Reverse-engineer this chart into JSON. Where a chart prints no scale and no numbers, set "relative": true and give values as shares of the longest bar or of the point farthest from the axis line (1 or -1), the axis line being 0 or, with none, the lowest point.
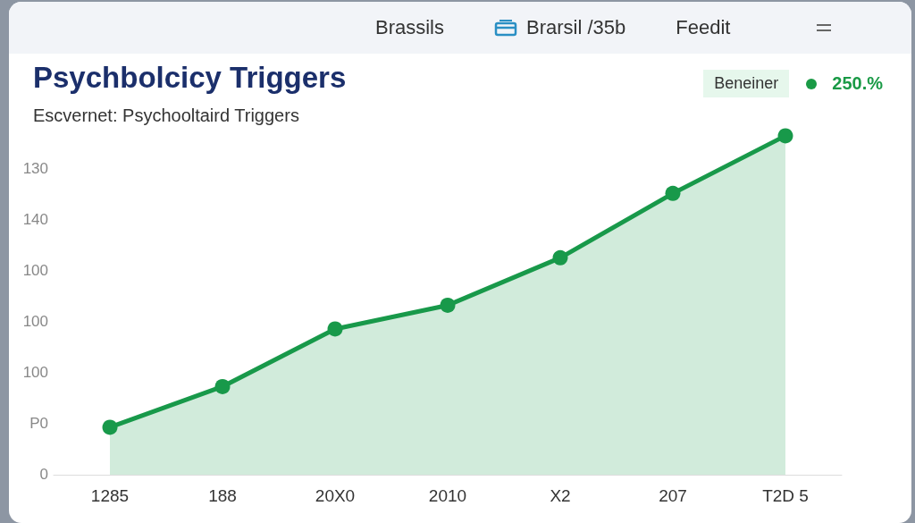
{
  "chart_data": {
    "type": "area",
    "title": "Psychbolcicy Triggers",
    "subtitle": "Escvernet: Psychooltaird Triggers",
    "categories": [
      "1285",
      "188",
      "20X0",
      "2010",
      "X2",
      "207",
      "T2D 5"
    ],
    "series": [
      {
        "color": "#18994a",
        "values": [
          0.14,
          0.26,
          0.43,
          0.5,
          0.64,
          0.83,
          1
        ]
      }
    ],
    "relative": true,
    "marker": "circle",
    "annotations": [
      "Brassils",
      "Brarsil /35b",
      "Feedit",
      "Beneiner",
      "250.%",
      "130",
      "140",
      "100",
      "100",
      "100",
      "P0",
      "0"
    ]
  }
}
